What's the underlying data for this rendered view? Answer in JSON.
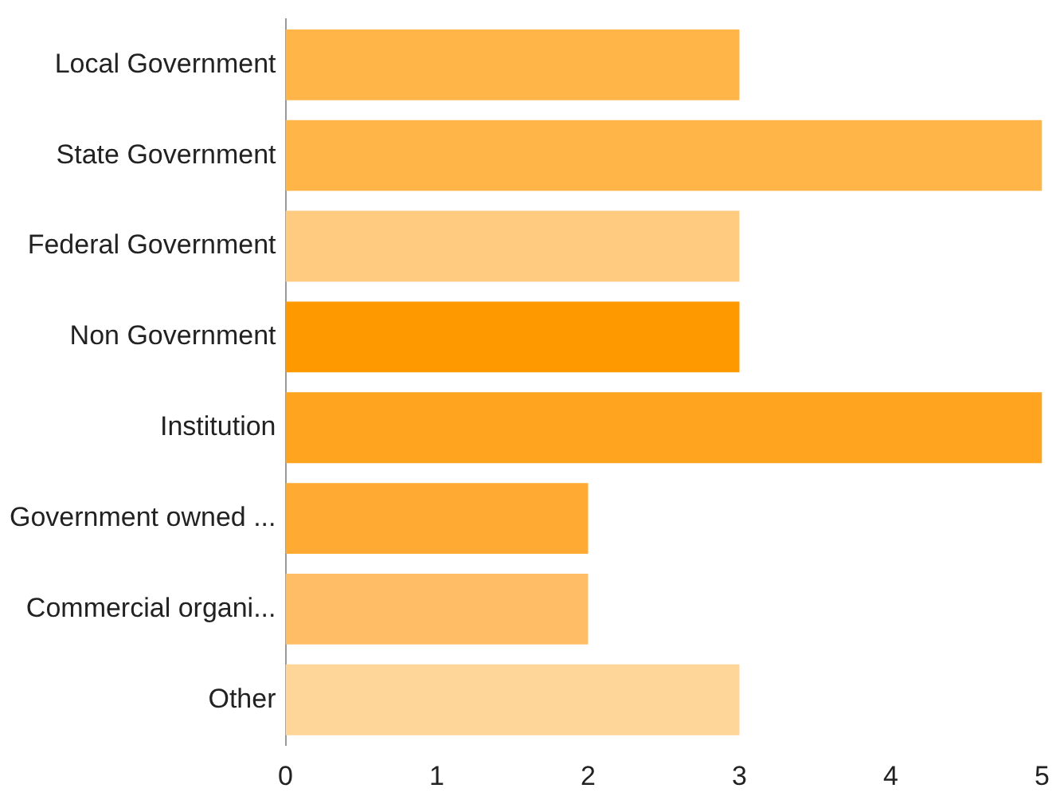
{
  "chart_data": {
    "type": "bar",
    "orientation": "horizontal",
    "categories": [
      "Local Government",
      "State Government",
      "Federal Government",
      "Non Government",
      "Institution",
      "Government owned ...",
      "Commercial organi...",
      "Other"
    ],
    "values": [
      3,
      5,
      3,
      3,
      5,
      2,
      2,
      3
    ],
    "colors": [
      "#ffb547",
      "#ffb547",
      "#ffcb80",
      "#ff9900",
      "#ffa41f",
      "#ffab33",
      "#ffbd66",
      "#ffd699"
    ],
    "xlim": [
      0,
      5
    ],
    "xticks": [
      0,
      1,
      2,
      3,
      4,
      5
    ],
    "grid": false,
    "legend": false
  }
}
